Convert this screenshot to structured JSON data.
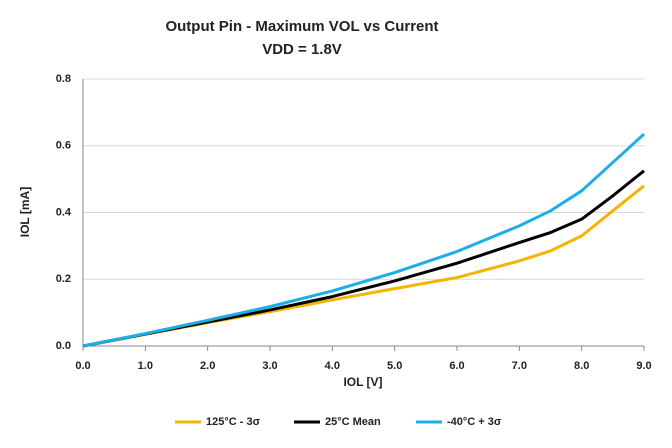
{
  "chart_data": {
    "type": "line",
    "title": "Output Pin - Maximum VOL vs Current",
    "subtitle": "VDD = 1.8V",
    "x_label": "IOL [V]",
    "y_label": "IOL [mA]",
    "x": [
      0,
      1,
      2,
      3,
      4,
      5,
      6,
      7,
      7.5,
      8,
      8.5,
      9
    ],
    "series": [
      {
        "name": "125°C - 3σ",
        "color": "#f5b400",
        "values": [
          0,
          0.035,
          0.07,
          0.103,
          0.138,
          0.172,
          0.205,
          0.255,
          0.285,
          0.33,
          0.405,
          0.48
        ]
      },
      {
        "name": "25°C Mean",
        "color": "#000000",
        "values": [
          0,
          0.036,
          0.072,
          0.108,
          0.148,
          0.195,
          0.248,
          0.31,
          0.34,
          0.38,
          0.45,
          0.525
        ]
      },
      {
        "name": "-40°C + 3σ",
        "color": "#1aafe6",
        "values": [
          0,
          0.037,
          0.077,
          0.118,
          0.165,
          0.22,
          0.283,
          0.36,
          0.405,
          0.465,
          0.55,
          0.635
        ]
      }
    ],
    "xlim": [
      0,
      9
    ],
    "xticks": [
      {
        "value": 0,
        "label": "0.0"
      },
      {
        "value": 1,
        "label": "1.0"
      },
      {
        "value": 2,
        "label": "2.0"
      },
      {
        "value": 3,
        "label": "3.0"
      },
      {
        "value": 4,
        "label": "4.0"
      },
      {
        "value": 5,
        "label": "5.0"
      },
      {
        "value": 6,
        "label": "6.0"
      },
      {
        "value": 7,
        "label": "7.0"
      },
      {
        "value": 8,
        "label": "8.0"
      },
      {
        "value": 9,
        "label": "9.0"
      }
    ],
    "ylim": [
      0,
      0.8
    ],
    "yticks": [
      {
        "value": 0,
        "label": "0.0"
      },
      0.2,
      0.4,
      0.6,
      0.8
    ],
    "grid": true,
    "legend": "bottom"
  }
}
